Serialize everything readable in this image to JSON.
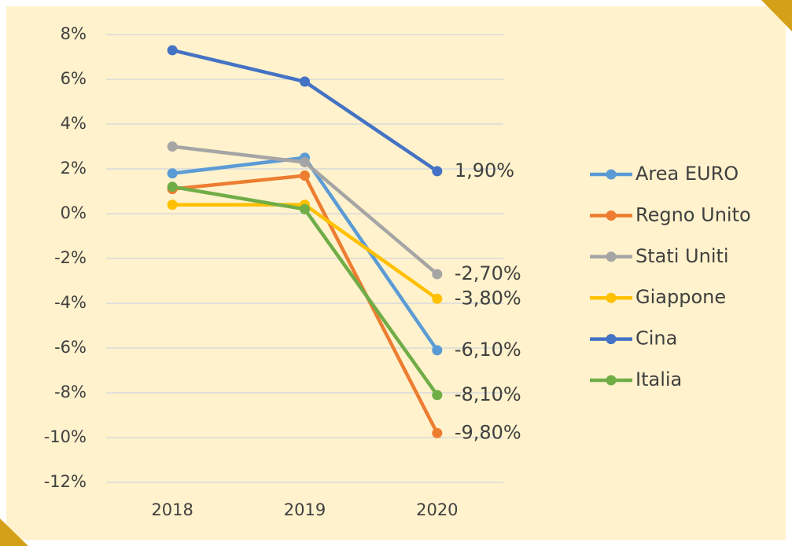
{
  "chart_data": {
    "type": "line",
    "categories": [
      "2018",
      "2019",
      "2020"
    ],
    "ylim": [
      -12,
      8
    ],
    "yticks": [
      {
        "value": -12,
        "label": "-12%"
      },
      {
        "value": -10,
        "label": "-10%"
      },
      {
        "value": -8,
        "label": "-8%"
      },
      {
        "value": -6,
        "label": "-6%"
      },
      {
        "value": -4,
        "label": "-4%"
      },
      {
        "value": -2,
        "label": "-2%"
      },
      {
        "value": 0,
        "label": "0%"
      },
      {
        "value": 2,
        "label": "2%"
      },
      {
        "value": 4,
        "label": "4%"
      },
      {
        "value": 6,
        "label": "6%"
      },
      {
        "value": 8,
        "label": "8%"
      }
    ],
    "grid": true,
    "legend": "right",
    "series": [
      {
        "name": "Area EURO",
        "color": "#5b9bd5",
        "values": [
          1.8,
          2.5,
          -6.1
        ],
        "value_labels": [
          null,
          null,
          "-6,10%"
        ]
      },
      {
        "name": "Regno Unito",
        "color": "#ed7d31",
        "values": [
          1.1,
          1.7,
          -9.8
        ],
        "value_labels": [
          null,
          null,
          "-9,80%"
        ]
      },
      {
        "name": "Stati Uniti",
        "color": "#a5a5a5",
        "values": [
          3.0,
          2.3,
          -2.7
        ],
        "value_labels": [
          null,
          null,
          "-2,70%"
        ]
      },
      {
        "name": "Giappone",
        "color": "#ffc000",
        "values": [
          0.4,
          0.4,
          -3.8
        ],
        "value_labels": [
          null,
          null,
          "-3,80%"
        ]
      },
      {
        "name": "Cina",
        "color": "#4472c4",
        "values": [
          7.3,
          5.9,
          1.9
        ],
        "value_labels": [
          null,
          null,
          "1,90%"
        ]
      },
      {
        "name": "Italia",
        "color": "#70ad47",
        "values": [
          1.2,
          0.2,
          -8.1
        ],
        "value_labels": [
          null,
          null,
          "-8,10%"
        ]
      }
    ]
  }
}
